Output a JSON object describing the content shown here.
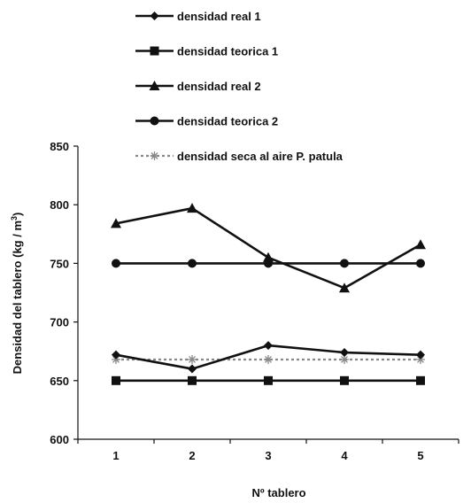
{
  "chart_data": {
    "type": "line",
    "categories": [
      "1",
      "2",
      "3",
      "4",
      "5"
    ],
    "xlabel": "Nº tablero",
    "ylabel": "Densidad del tablero (kg / m",
    "ylabel_sup": "3",
    "ylabel_close": ")",
    "ylim": [
      600,
      850
    ],
    "yticks": [
      "600",
      "650",
      "700",
      "750",
      "800",
      "850"
    ],
    "grid": false,
    "legend_position": "top",
    "series": [
      {
        "name": "densidad real 1",
        "marker": "diamond",
        "style": "solid",
        "color": "#111111",
        "values": [
          672,
          660,
          680,
          674,
          672
        ]
      },
      {
        "name": "densidad teorica 1",
        "marker": "square",
        "style": "solid",
        "color": "#111111",
        "values": [
          650,
          650,
          650,
          650,
          650
        ]
      },
      {
        "name": "densidad real 2",
        "marker": "triangle",
        "style": "solid",
        "color": "#111111",
        "values": [
          784,
          797,
          755,
          729,
          766
        ]
      },
      {
        "name": "densidad teorica 2",
        "marker": "circle",
        "style": "solid",
        "color": "#111111",
        "values": [
          750,
          750,
          750,
          750,
          750
        ]
      },
      {
        "name": "densidad seca al aire P. patula",
        "marker": "asterisk",
        "style": "dotted",
        "color": "#888888",
        "values": [
          668,
          668,
          668,
          668,
          668
        ]
      }
    ]
  }
}
